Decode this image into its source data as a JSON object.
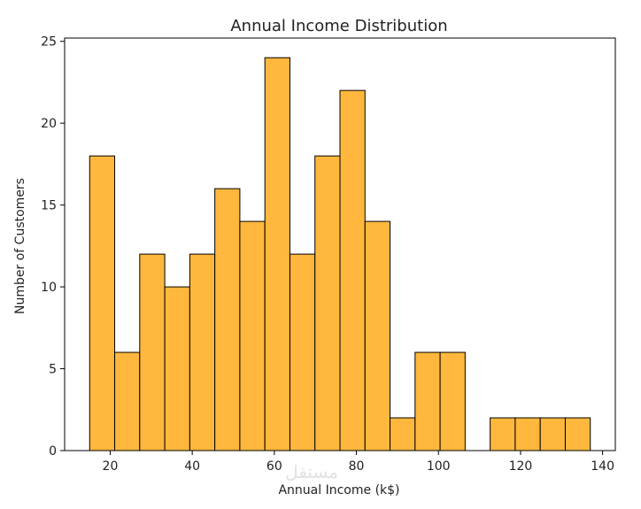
{
  "chart_data": {
    "type": "bar",
    "title": "Annual Income Distribution",
    "xlabel": "Annual Income (k$)",
    "ylabel": "Number of Customers",
    "bin_start": 15,
    "bin_width": 6.1,
    "values": [
      18,
      6,
      12,
      10,
      12,
      16,
      14,
      24,
      12,
      18,
      22,
      14,
      2,
      6,
      6,
      0,
      2,
      2,
      2,
      2
    ],
    "xlim": [
      8.9,
      143.1
    ],
    "ylim": [
      0,
      25.2
    ],
    "x_ticks": [
      20,
      40,
      60,
      80,
      100,
      120,
      140
    ],
    "y_ticks": [
      0,
      5,
      10,
      15,
      20,
      25
    ],
    "bar_color": "#FFB83D",
    "edge_color": "#000000",
    "grid": false,
    "legend": "none"
  },
  "watermark": "مستقل"
}
